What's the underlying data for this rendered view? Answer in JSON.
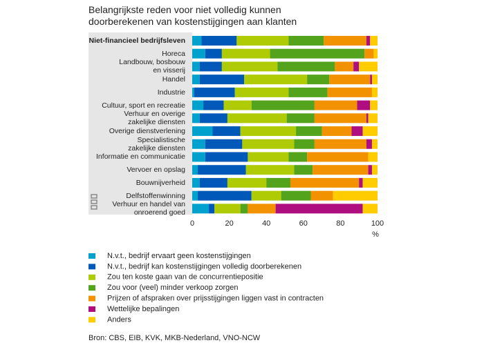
{
  "chart_data": {
    "type": "stacked_barh",
    "title": "Belangrijkste reden voor niet volledig kunnen\ndoorberekenen van kostenstijgingen aan klanten",
    "categories": [
      "Niet-financieel bedrijfsleven",
      "Horeca",
      "Landbouw, bosbouw\nen visserij",
      "Handel",
      "Industrie",
      "Cultuur, sport en recreatie",
      "Verhuur en overige\nzakelijke diensten",
      "Overige dienstverlening",
      "Specialistische\nzakelijke diensten",
      "Informatie en communicatie",
      "Vervoer en opslag",
      "Bouwnijverheid",
      "Delfstoffenwinning",
      "Verhuur en handel van\nonroerend goed"
    ],
    "series": [
      {
        "name": "N.v.t., bedrijf ervaart geen kostenstijgingen",
        "color": "#00a1cd",
        "values": [
          5,
          7,
          4,
          4,
          1,
          6,
          4,
          11,
          7,
          7,
          3,
          4,
          3,
          9
        ]
      },
      {
        "name": "N.v.t., bedrijf kan kostenstijgingen volledig doorberekenen",
        "color": "#0058b8",
        "values": [
          19,
          9,
          12,
          24,
          22,
          11,
          15,
          15,
          20,
          23,
          26,
          15,
          29,
          3
        ]
      },
      {
        "name": "Zou ten koste gaan van de concurrentiepositie",
        "color": "#afcb05",
        "values": [
          28,
          26,
          30,
          34,
          29,
          15,
          32,
          30,
          28,
          22,
          26,
          21,
          16,
          14
        ]
      },
      {
        "name": "Zou voor (veel) minder verkoop zorgen",
        "color": "#53a31d",
        "values": [
          19,
          51,
          31,
          12,
          21,
          34,
          15,
          14,
          11,
          10,
          10,
          13,
          16,
          4
        ]
      },
      {
        "name": "Prijzen of afspraken over prijsstijgingen liggen vast in contracten",
        "color": "#f39200",
        "values": [
          23,
          5,
          10,
          22,
          24,
          23,
          28,
          16,
          28,
          33,
          30,
          37,
          12,
          15
        ]
      },
      {
        "name": "Wettelijke bepalingen",
        "color": "#af0e80",
        "values": [
          2,
          0,
          3,
          1,
          0,
          7,
          1,
          6,
          3,
          0,
          2,
          2,
          0,
          47
        ]
      },
      {
        "name": "Anders",
        "color": "#ffcc00",
        "values": [
          4,
          2,
          10,
          3,
          3,
          4,
          5,
          8,
          3,
          5,
          3,
          8,
          24,
          8
        ]
      }
    ],
    "xlim": [
      0,
      100
    ],
    "xticks": [
      0,
      20,
      40,
      60,
      80,
      100
    ],
    "xlabel": "%",
    "source": "Bron: CBS, EIB, KVK, MKB-Nederland, VNO-NCW"
  }
}
